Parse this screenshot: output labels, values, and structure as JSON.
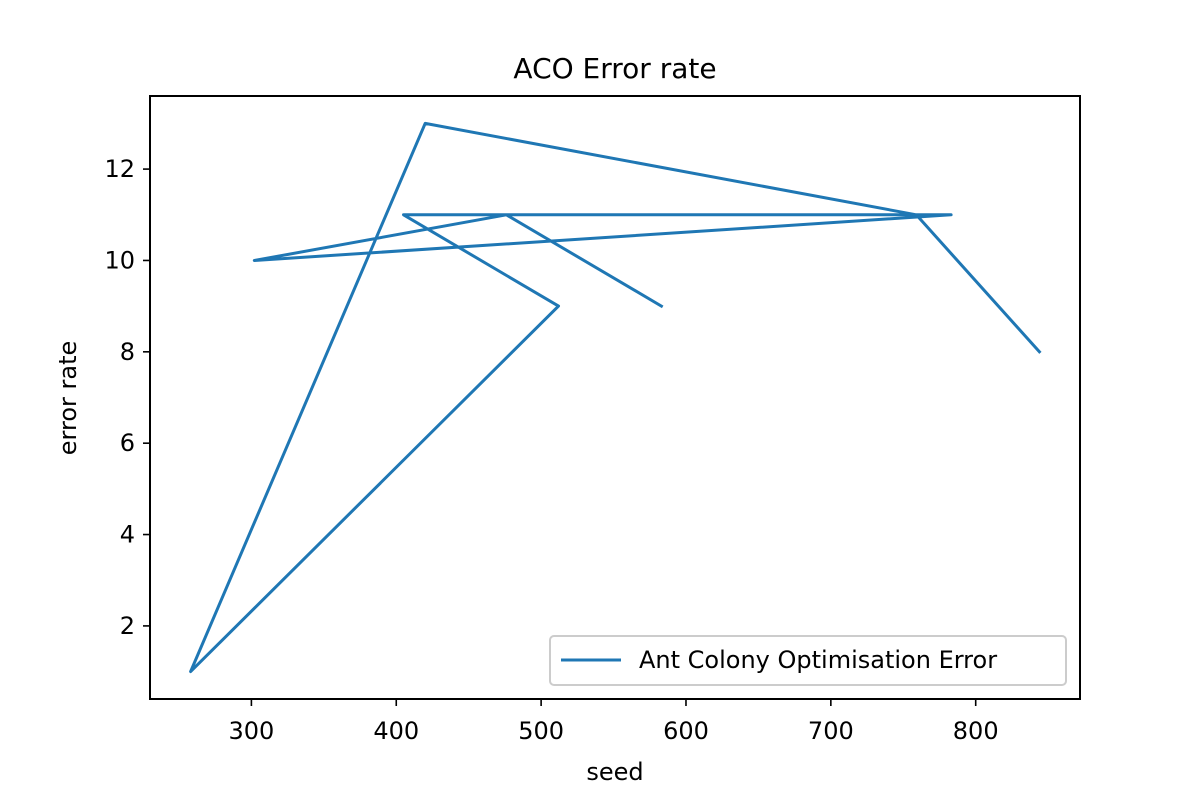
{
  "chart_data": {
    "type": "line",
    "title": "ACO Error rate",
    "xlabel": "seed",
    "ylabel": "error rate",
    "xlim": [
      230,
      872
    ],
    "ylim": [
      0.4,
      13.6
    ],
    "xticks": [
      300,
      400,
      500,
      600,
      700,
      800
    ],
    "yticks": [
      2,
      4,
      6,
      8,
      10,
      12
    ],
    "grid": false,
    "legend_position": "bottom-right",
    "series": [
      {
        "name": "Ant Colony Optimisation Error",
        "color": "#1f77b4",
        "x": [
          583,
          476,
          302,
          783,
          405,
          512,
          258,
          420,
          759,
          844
        ],
        "y": [
          9,
          11,
          10,
          11,
          11,
          9,
          1,
          13,
          11,
          8
        ]
      }
    ]
  }
}
